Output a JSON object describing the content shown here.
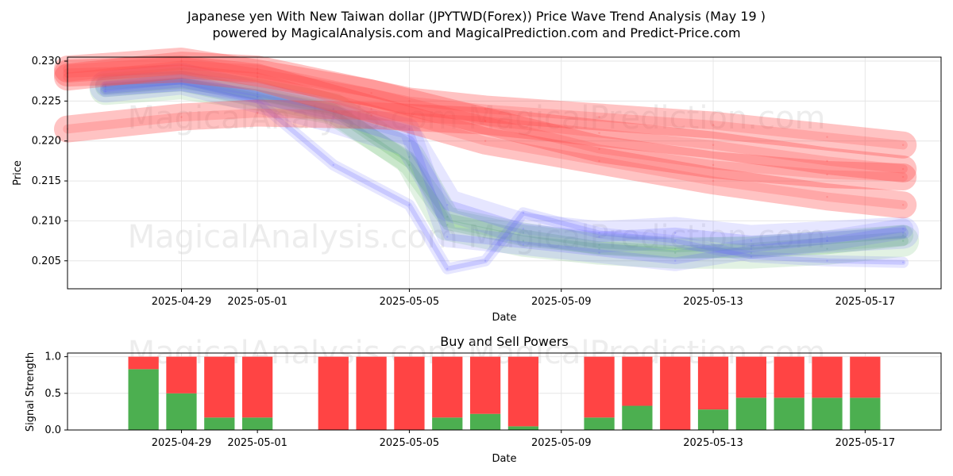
{
  "title_line1": "Japanese yen With New Taiwan dollar (JPYTWD(Forex)) Price Wave Trend Analysis (May 19 )",
  "title_line2": "powered by MagicalAnalysis.com and MagicalPrediction.com and Predict-Price.com",
  "watermark_text": "MagicalAnalysis.com   MagicalPrediction.com",
  "chart_data": [
    {
      "type": "line",
      "xlabel": "Date",
      "ylabel": "Price",
      "x_ticks": [
        "2025-04-29",
        "2025-05-01",
        "2025-05-05",
        "2025-05-09",
        "2025-05-13",
        "2025-05-17"
      ],
      "y_ticks": [
        "0.205",
        "0.210",
        "0.215",
        "0.220",
        "0.225",
        "0.230"
      ],
      "xlim": [
        "2025-04-26",
        "2025-05-19"
      ],
      "ylim": [
        0.2015,
        0.2305
      ],
      "grid": true,
      "colors": {
        "green": "#4caf50",
        "blue": "#6464ff",
        "red": "#ff4444"
      },
      "series": [
        {
          "color": "green",
          "points": [
            [
              "2025-04-27",
              0.2265
            ],
            [
              "2025-04-29",
              0.2272
            ],
            [
              "2025-05-01",
              0.2258
            ],
            [
              "2025-05-03",
              0.224
            ],
            [
              "2025-05-05",
              0.218
            ],
            [
              "2025-05-06",
              0.2095
            ],
            [
              "2025-05-08",
              0.2075
            ],
            [
              "2025-05-10",
              0.2065
            ],
            [
              "2025-05-12",
              0.206
            ],
            [
              "2025-05-14",
              0.206
            ],
            [
              "2025-05-16",
              0.2065
            ],
            [
              "2025-05-18",
              0.2075
            ]
          ]
        },
        {
          "color": "green",
          "points": [
            [
              "2025-04-27",
              0.2268
            ],
            [
              "2025-04-29",
              0.2275
            ],
            [
              "2025-05-01",
              0.2255
            ],
            [
              "2025-05-03",
              0.2235
            ],
            [
              "2025-05-05",
              0.217
            ],
            [
              "2025-05-06",
              0.2105
            ],
            [
              "2025-05-08",
              0.2085
            ],
            [
              "2025-05-10",
              0.207
            ],
            [
              "2025-05-12",
              0.2065
            ],
            [
              "2025-05-14",
              0.2068
            ],
            [
              "2025-05-16",
              0.2075
            ],
            [
              "2025-05-18",
              0.2082
            ]
          ]
        },
        {
          "color": "blue",
          "points": [
            [
              "2025-04-27",
              0.2262
            ],
            [
              "2025-04-29",
              0.227
            ],
            [
              "2025-05-01",
              0.225
            ],
            [
              "2025-05-03",
              0.217
            ],
            [
              "2025-05-05",
              0.212
            ],
            [
              "2025-05-06",
              0.204
            ],
            [
              "2025-05-07",
              0.205
            ],
            [
              "2025-05-08",
              0.211
            ],
            [
              "2025-05-10",
              0.2085
            ],
            [
              "2025-05-12",
              0.2075
            ],
            [
              "2025-05-14",
              0.2055
            ],
            [
              "2025-05-16",
              0.205
            ],
            [
              "2025-05-18",
              0.2048
            ]
          ]
        },
        {
          "color": "blue",
          "points": [
            [
              "2025-04-27",
              0.2268
            ],
            [
              "2025-04-29",
              0.2278
            ],
            [
              "2025-05-01",
              0.2255
            ],
            [
              "2025-05-03",
              0.223
            ],
            [
              "2025-05-05",
              0.22
            ],
            [
              "2025-05-06",
              0.212
            ],
            [
              "2025-05-08",
              0.209
            ],
            [
              "2025-05-10",
              0.208
            ],
            [
              "2025-05-12",
              0.2085
            ],
            [
              "2025-05-14",
              0.2075
            ],
            [
              "2025-05-16",
              0.208
            ],
            [
              "2025-05-18",
              0.2085
            ]
          ]
        },
        {
          "color": "blue",
          "points": [
            [
              "2025-04-27",
              0.227
            ],
            [
              "2025-04-29",
              0.2275
            ],
            [
              "2025-05-01",
              0.226
            ],
            [
              "2025-05-03",
              0.224
            ],
            [
              "2025-05-05",
              0.2215
            ],
            [
              "2025-05-06",
              0.208
            ],
            [
              "2025-05-08",
              0.207
            ],
            [
              "2025-05-10",
              0.206
            ],
            [
              "2025-05-12",
              0.205
            ],
            [
              "2025-05-14",
              0.2065
            ],
            [
              "2025-05-16",
              0.2075
            ],
            [
              "2025-05-18",
              0.209
            ]
          ]
        },
        {
          "color": "red",
          "points": [
            [
              "2025-04-26",
              0.229
            ],
            [
              "2025-04-29",
              0.23
            ],
            [
              "2025-05-01",
              0.2285
            ],
            [
              "2025-05-04",
              0.226
            ],
            [
              "2025-05-07",
              0.2225
            ],
            [
              "2025-05-10",
              0.219
            ],
            [
              "2025-05-13",
              0.217
            ],
            [
              "2025-05-16",
              0.2158
            ],
            [
              "2025-05-18",
              0.2155
            ]
          ]
        },
        {
          "color": "red",
          "points": [
            [
              "2025-04-26",
              0.2215
            ],
            [
              "2025-04-29",
              0.223
            ],
            [
              "2025-05-01",
              0.2235
            ],
            [
              "2025-05-04",
              0.2232
            ],
            [
              "2025-05-07",
              0.2225
            ],
            [
              "2025-05-10",
              0.221
            ],
            [
              "2025-05-13",
              0.2195
            ],
            [
              "2025-05-16",
              0.2175
            ],
            [
              "2025-05-18",
              0.2165
            ]
          ]
        },
        {
          "color": "red",
          "points": [
            [
              "2025-04-26",
              0.228
            ],
            [
              "2025-04-29",
              0.2295
            ],
            [
              "2025-05-01",
              0.229
            ],
            [
              "2025-05-05",
              0.225
            ],
            [
              "2025-05-07",
              0.224
            ],
            [
              "2025-05-10",
              0.223
            ],
            [
              "2025-05-13",
              0.222
            ],
            [
              "2025-05-16",
              0.2205
            ],
            [
              "2025-05-18",
              0.2195
            ]
          ]
        },
        {
          "color": "red",
          "points": [
            [
              "2025-04-26",
              0.2285
            ],
            [
              "2025-04-29",
              0.229
            ],
            [
              "2025-05-01",
              0.228
            ],
            [
              "2025-05-04",
              0.224
            ],
            [
              "2025-05-07",
              0.22
            ],
            [
              "2025-05-10",
              0.2175
            ],
            [
              "2025-05-13",
              0.215
            ],
            [
              "2025-05-16",
              0.213
            ],
            [
              "2025-05-18",
              0.212
            ]
          ]
        }
      ]
    },
    {
      "type": "bar",
      "title": "Buy and Sell Powers",
      "xlabel": "Date",
      "ylabel": "Signal Strength",
      "x_ticks": [
        "2025-04-29",
        "2025-05-01",
        "2025-05-05",
        "2025-05-09",
        "2025-05-13",
        "2025-05-17"
      ],
      "y_ticks": [
        "0.0",
        "0.5",
        "1.0"
      ],
      "xlim": [
        "2025-04-26",
        "2025-05-19"
      ],
      "ylim": [
        0,
        1.05
      ],
      "colors": {
        "buy": "#4caf50",
        "sell": "#ff4444"
      },
      "categories": [
        "2025-04-28",
        "2025-04-29",
        "2025-04-30",
        "2025-05-01",
        "2025-05-03",
        "2025-05-04",
        "2025-05-05",
        "2025-05-06",
        "2025-05-07",
        "2025-05-08",
        "2025-05-10",
        "2025-05-11",
        "2025-05-12",
        "2025-05-13",
        "2025-05-14",
        "2025-05-15",
        "2025-05-16",
        "2025-05-17"
      ],
      "series": [
        {
          "key": "buy",
          "values": [
            0.83,
            0.5,
            0.17,
            0.17,
            0.0,
            0.0,
            0.0,
            0.17,
            0.22,
            0.05,
            0.17,
            0.33,
            0.0,
            0.28,
            0.44,
            0.44,
            0.44,
            0.44
          ]
        },
        {
          "key": "sell",
          "values": [
            0.17,
            0.5,
            0.83,
            0.83,
            1.0,
            1.0,
            1.0,
            0.83,
            0.78,
            0.95,
            0.83,
            0.67,
            1.0,
            0.72,
            0.56,
            0.56,
            0.56,
            0.56
          ]
        }
      ]
    }
  ]
}
